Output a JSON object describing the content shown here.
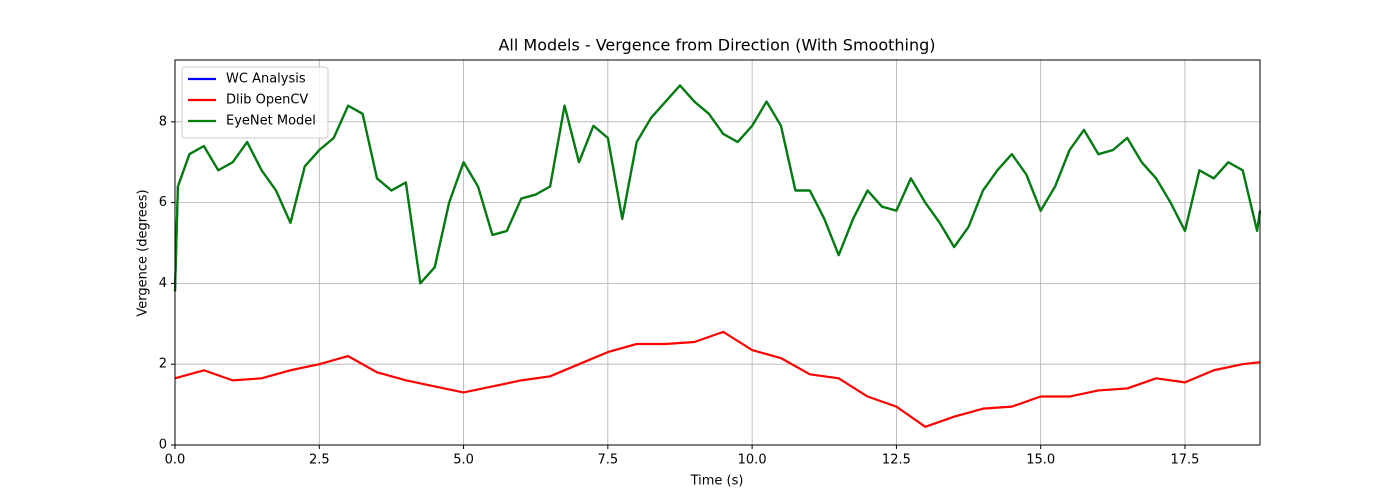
{
  "chart_data": {
    "type": "line",
    "title": "All Models - Vergence from Direction (With Smoothing)",
    "x_label": "Time (s)",
    "y_label": "Vergence (degrees)",
    "xlim": [
      0,
      18.8
    ],
    "ylim": [
      0,
      9.53
    ],
    "xticks": [
      {
        "value": 0,
        "label": "0.0"
      },
      {
        "value": 2.5,
        "label": "2.5"
      },
      {
        "value": 5,
        "label": "5.0"
      },
      {
        "value": 7.5,
        "label": "7.5"
      },
      {
        "value": 10,
        "label": "10.0"
      },
      {
        "value": 12.5,
        "label": "12.5"
      },
      {
        "value": 15,
        "label": "15.0"
      },
      {
        "value": 17.5,
        "label": "17.5"
      }
    ],
    "yticks": [
      0,
      2,
      4,
      6,
      8
    ],
    "grid": true,
    "legend": "upper left",
    "series": [
      {
        "name": "WC Analysis",
        "color": "#0000ff",
        "x": [
          0,
          0.05,
          0.25,
          0.5,
          0.75,
          1,
          1.25,
          1.5,
          1.75,
          2,
          2.25,
          2.5,
          2.75,
          3,
          3.25,
          3.5,
          3.75,
          4,
          4.25,
          4.5,
          4.75,
          5,
          5.25,
          5.5,
          5.75,
          6,
          6.25,
          6.5,
          6.75,
          7,
          7.25,
          7.5,
          7.75,
          8,
          8.25,
          8.5,
          8.75,
          9,
          9.25,
          9.5,
          9.75,
          10,
          10.25,
          10.5,
          10.75,
          11,
          11.25,
          11.5,
          11.75,
          12,
          12.25,
          12.5,
          12.75,
          13,
          13.25,
          13.5,
          13.75,
          14,
          14.25,
          14.5,
          14.75,
          15,
          15.25,
          15.5,
          15.75,
          16,
          16.25,
          16.5,
          16.75,
          17,
          17.25,
          17.5,
          17.75,
          18,
          18.25,
          18.5,
          18.75,
          18.8
        ],
        "values": [
          3.8,
          6.4,
          7.2,
          7.4,
          6.8,
          7.0,
          7.5,
          6.8,
          6.3,
          5.5,
          6.9,
          7.3,
          7.6,
          8.4,
          8.2,
          6.6,
          6.3,
          6.5,
          4.0,
          4.4,
          6.0,
          7.0,
          6.4,
          5.2,
          5.3,
          6.1,
          6.2,
          6.4,
          8.4,
          7.0,
          7.9,
          7.6,
          5.6,
          7.5,
          8.1,
          8.5,
          8.9,
          8.5,
          8.2,
          7.7,
          7.5,
          7.9,
          8.5,
          7.9,
          6.3,
          6.3,
          5.6,
          4.7,
          5.6,
          6.3,
          5.9,
          5.8,
          6.6,
          6.0,
          5.5,
          4.9,
          5.4,
          6.3,
          6.8,
          7.2,
          6.7,
          5.8,
          6.4,
          7.3,
          7.8,
          7.2,
          7.3,
          7.6,
          7.0,
          6.6,
          6.0,
          5.3,
          6.8,
          6.6,
          7.0,
          6.8,
          5.3,
          5.8
        ]
      },
      {
        "name": "Dlib OpenCV",
        "color": "#ff0000",
        "x": [
          0,
          0.5,
          1,
          1.5,
          2,
          2.5,
          3,
          3.5,
          4,
          4.5,
          5,
          5.5,
          6,
          6.5,
          7,
          7.5,
          8,
          8.5,
          9,
          9.5,
          10,
          10.5,
          11,
          11.5,
          12,
          12.5,
          13,
          13.5,
          14,
          14.5,
          15,
          15.5,
          16,
          16.5,
          17,
          17.5,
          18,
          18.5,
          18.8
        ],
        "values": [
          1.65,
          1.85,
          1.6,
          1.65,
          1.85,
          2.0,
          2.2,
          1.8,
          1.6,
          1.45,
          1.3,
          1.45,
          1.6,
          1.7,
          2.0,
          2.3,
          2.5,
          2.5,
          2.55,
          2.8,
          2.35,
          2.15,
          1.75,
          1.65,
          1.2,
          0.95,
          0.45,
          0.7,
          0.9,
          0.95,
          1.2,
          1.2,
          1.35,
          1.4,
          1.65,
          1.55,
          1.85,
          2.0,
          2.05
        ]
      },
      {
        "name": "EyeNet Model",
        "color": "#008000",
        "x": [
          0,
          0.05,
          0.25,
          0.5,
          0.75,
          1,
          1.25,
          1.5,
          1.75,
          2,
          2.25,
          2.5,
          2.75,
          3,
          3.25,
          3.5,
          3.75,
          4,
          4.25,
          4.5,
          4.75,
          5,
          5.25,
          5.5,
          5.75,
          6,
          6.25,
          6.5,
          6.75,
          7,
          7.25,
          7.5,
          7.75,
          8,
          8.25,
          8.5,
          8.75,
          9,
          9.25,
          9.5,
          9.75,
          10,
          10.25,
          10.5,
          10.75,
          11,
          11.25,
          11.5,
          11.75,
          12,
          12.25,
          12.5,
          12.75,
          13,
          13.25,
          13.5,
          13.75,
          14,
          14.25,
          14.5,
          14.75,
          15,
          15.25,
          15.5,
          15.75,
          16,
          16.25,
          16.5,
          16.75,
          17,
          17.25,
          17.5,
          17.75,
          18,
          18.25,
          18.5,
          18.75,
          18.8
        ],
        "values": [
          3.8,
          6.4,
          7.2,
          7.4,
          6.8,
          7.0,
          7.5,
          6.8,
          6.3,
          5.5,
          6.9,
          7.3,
          7.6,
          8.4,
          8.2,
          6.6,
          6.3,
          6.5,
          4.0,
          4.4,
          6.0,
          7.0,
          6.4,
          5.2,
          5.3,
          6.1,
          6.2,
          6.4,
          8.4,
          7.0,
          7.9,
          7.6,
          5.6,
          7.5,
          8.1,
          8.5,
          8.9,
          8.5,
          8.2,
          7.7,
          7.5,
          7.9,
          8.5,
          7.9,
          6.3,
          6.3,
          5.6,
          4.7,
          5.6,
          6.3,
          5.9,
          5.8,
          6.6,
          6.0,
          5.5,
          4.9,
          5.4,
          6.3,
          6.8,
          7.2,
          6.7,
          5.8,
          6.4,
          7.3,
          7.8,
          7.2,
          7.3,
          7.6,
          7.0,
          6.6,
          6.0,
          5.3,
          6.8,
          6.6,
          7.0,
          6.8,
          5.3,
          5.8
        ]
      }
    ]
  }
}
